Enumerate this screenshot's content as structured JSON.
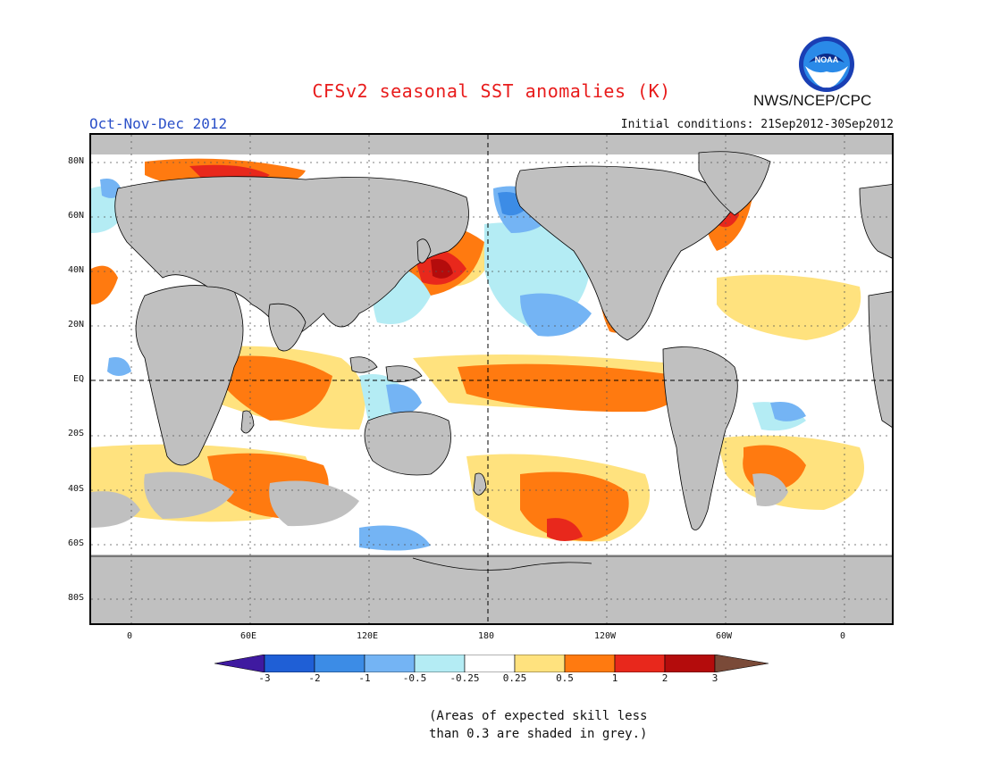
{
  "header": {
    "title": "CFSv2 seasonal SST anomalies (K)",
    "period": "Oct-Nov-Dec 2012",
    "initial_conditions": "Initial conditions: 21Sep2012-30Sep2012",
    "agency": "NWS/NCEP/CPC",
    "logo_text": "NOAA"
  },
  "map": {
    "lat_labels": [
      "80N",
      "60N",
      "40N",
      "20N",
      "EQ",
      "20S",
      "40S",
      "60S",
      "80S"
    ],
    "lon_labels": [
      "0",
      "60E",
      "120E",
      "180",
      "120W",
      "60W",
      "0"
    ],
    "land_color": "#c0c0c0",
    "skill_mask_color": "#c0c0c0"
  },
  "legend": {
    "ticks": [
      "-3",
      "-2",
      "-1",
      "-0.5",
      "-0.25",
      "0.25",
      "0.5",
      "1",
      "2",
      "3"
    ],
    "colors": [
      "#3f1aa0",
      "#1f5fd6",
      "#3c8ce6",
      "#74b4f4",
      "#b4ecf4",
      "#ffffff",
      "#ffe27e",
      "#ff7a10",
      "#e8281c",
      "#b40c0c",
      "#7a4a38"
    ]
  },
  "footnote": {
    "line1": "(Areas of expected skill less",
    "line2": "than 0.3 are shaded in grey.)"
  }
}
